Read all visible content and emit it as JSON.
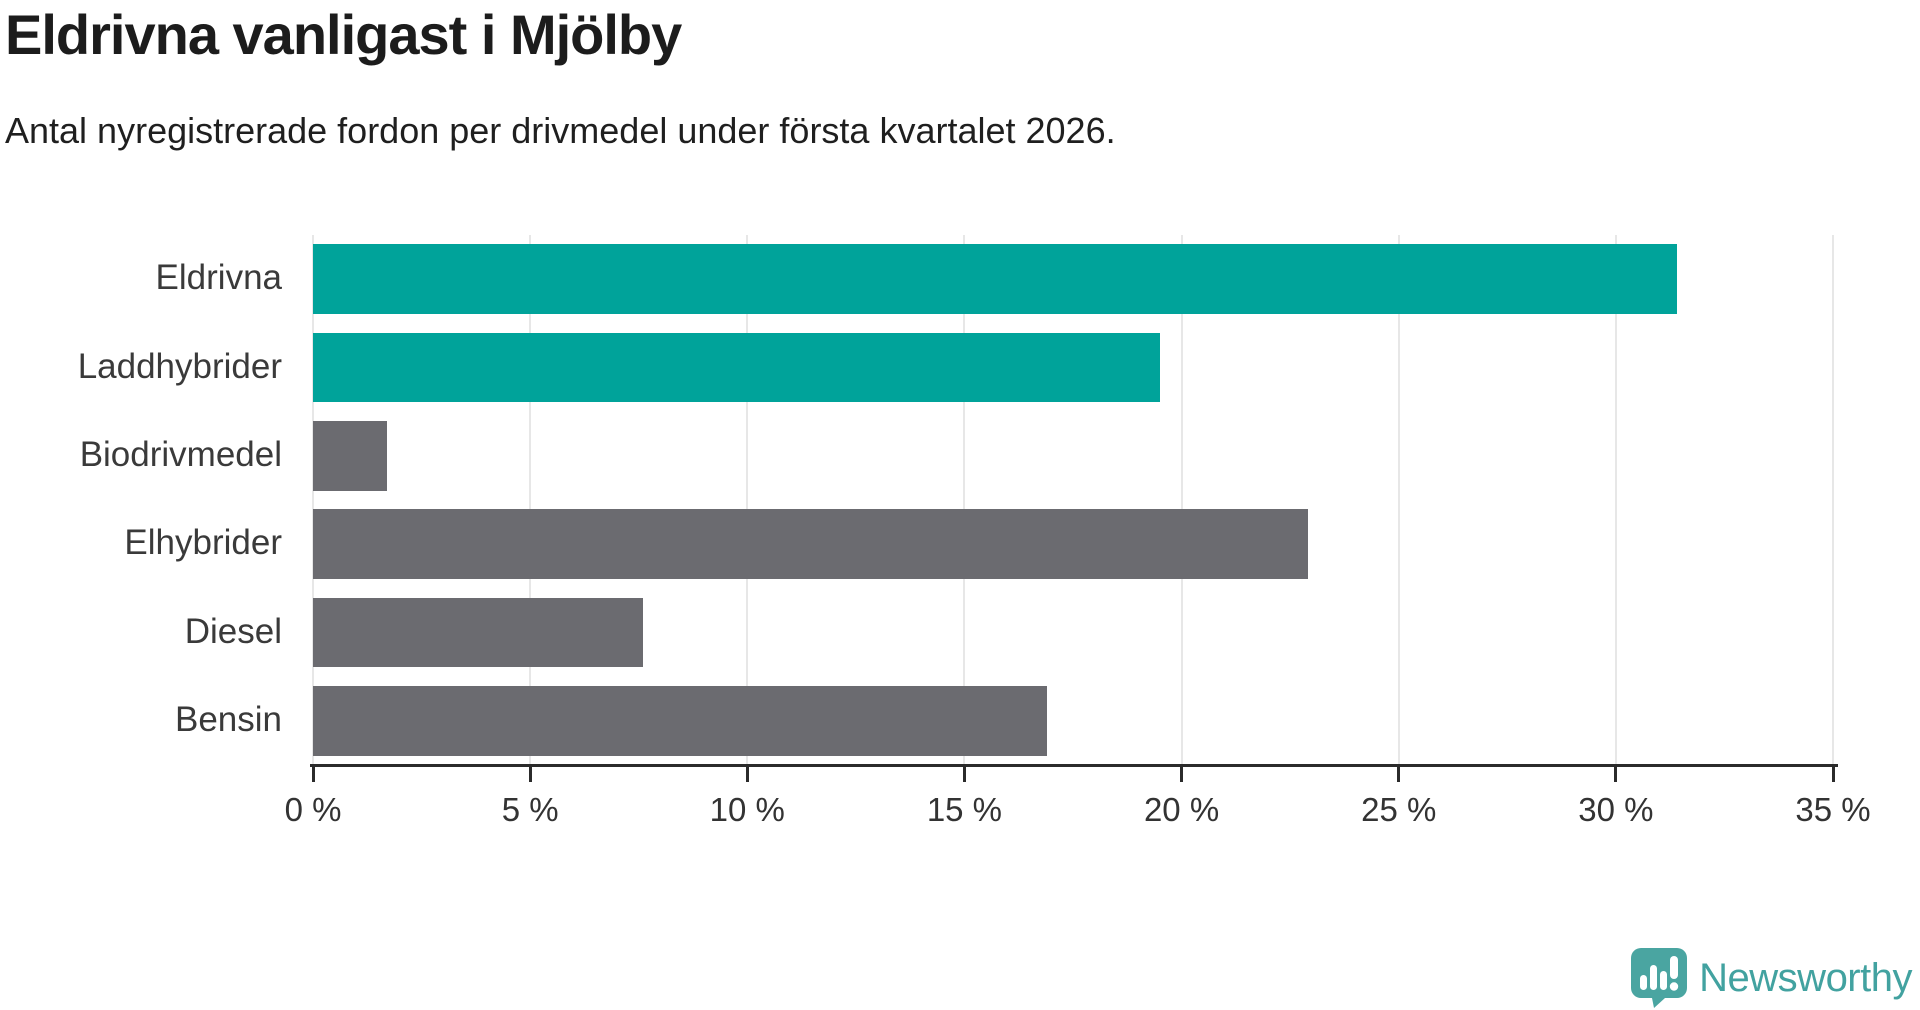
{
  "header": {
    "title": "Eldrivna vanligast i Mjölby",
    "subtitle": "Antal nyregistrerade fordon per drivmedel under första kvartalet 2026."
  },
  "chart_data": {
    "type": "bar",
    "orientation": "horizontal",
    "title": "Eldrivna vanligast i Mjölby",
    "subtitle": "Antal nyregistrerade fordon per drivmedel under första kvartalet 2026.",
    "categories": [
      "Eldrivna",
      "Laddhybrider",
      "Biodrivmedel",
      "Elhybrider",
      "Diesel",
      "Bensin"
    ],
    "values": [
      31.4,
      19.5,
      1.7,
      22.9,
      7.6,
      16.9
    ],
    "unit": "%",
    "colors": [
      "#00a39a",
      "#00a39a",
      "#6b6b70",
      "#6b6b70",
      "#6b6b70",
      "#6b6b70"
    ],
    "highlight_color": "#00a39a",
    "default_color": "#6b6b70",
    "xlim": [
      0,
      35
    ],
    "x_ticks": [
      0,
      5,
      10,
      15,
      20,
      25,
      30,
      35
    ],
    "x_tick_labels": [
      "0 %",
      "5 %",
      "10 %",
      "15 %",
      "20 %",
      "25 %",
      "30 %",
      "35 %"
    ],
    "grid": "vertical",
    "gridline_color": "#e7e7e7",
    "axis_color": "#2b2b2b",
    "legend": "none"
  },
  "branding": {
    "logo_text": "Newsworthy",
    "logo_color": "#4aa5a1",
    "logo_text_color": "#42a2a0",
    "logo_icon": "speech-bubble-bar-chart-exclamation"
  }
}
